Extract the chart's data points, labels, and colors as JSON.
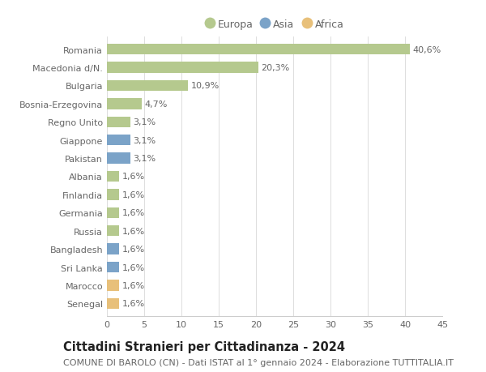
{
  "countries": [
    "Romania",
    "Macedonia d/N.",
    "Bulgaria",
    "Bosnia-Erzegovina",
    "Regno Unito",
    "Giappone",
    "Pakistan",
    "Albania",
    "Finlandia",
    "Germania",
    "Russia",
    "Bangladesh",
    "Sri Lanka",
    "Marocco",
    "Senegal"
  ],
  "values": [
    40.6,
    20.3,
    10.9,
    4.7,
    3.1,
    3.1,
    3.1,
    1.6,
    1.6,
    1.6,
    1.6,
    1.6,
    1.6,
    1.6,
    1.6
  ],
  "labels": [
    "40,6%",
    "20,3%",
    "10,9%",
    "4,7%",
    "3,1%",
    "3,1%",
    "3,1%",
    "1,6%",
    "1,6%",
    "1,6%",
    "1,6%",
    "1,6%",
    "1,6%",
    "1,6%",
    "1,6%"
  ],
  "continents": [
    "Europa",
    "Europa",
    "Europa",
    "Europa",
    "Europa",
    "Asia",
    "Asia",
    "Europa",
    "Europa",
    "Europa",
    "Europa",
    "Asia",
    "Asia",
    "Africa",
    "Africa"
  ],
  "colors": {
    "Europa": "#b5c98e",
    "Asia": "#7ba3c8",
    "Africa": "#e8c07a"
  },
  "xlim": [
    0,
    45
  ],
  "xticks": [
    0,
    5,
    10,
    15,
    20,
    25,
    30,
    35,
    40,
    45
  ],
  "title": "Cittadini Stranieri per Cittadinanza - 2024",
  "subtitle": "COMUNE DI BAROLO (CN) - Dati ISTAT al 1° gennaio 2024 - Elaborazione TUTTITALIA.IT",
  "background_color": "#ffffff",
  "grid_color": "#d8d8d8",
  "bar_height": 0.6,
  "title_fontsize": 10.5,
  "subtitle_fontsize": 8,
  "tick_fontsize": 8,
  "label_fontsize": 8
}
